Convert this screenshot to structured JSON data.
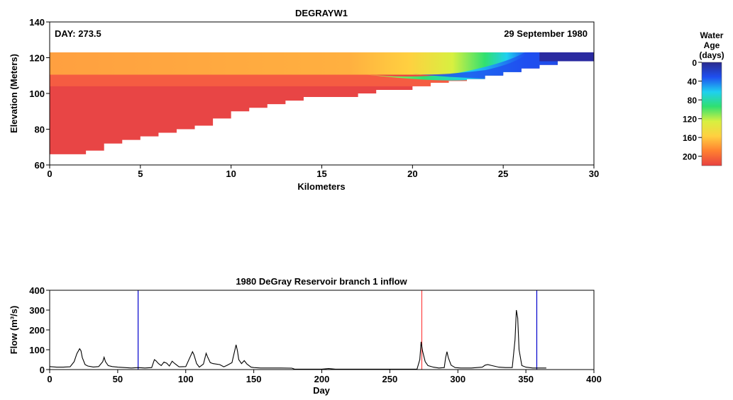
{
  "chart_data": [
    {
      "type": "heatmap",
      "title": "DEGRAYW1",
      "day_label": "DAY: 273.5",
      "date_label": "29 September 1980",
      "xlabel": "Kilometers",
      "ylabel": "Elevation (Meters)",
      "xlim": [
        0,
        30
      ],
      "ylim": [
        60,
        140
      ],
      "xticks": [
        0,
        5,
        10,
        15,
        20,
        25,
        30
      ],
      "yticks": [
        60,
        80,
        100,
        120,
        140
      ],
      "water_surface_elevation": 123,
      "bottom_profile": [
        {
          "x": 0,
          "y": 66
        },
        {
          "x": 2,
          "y": 68
        },
        {
          "x": 3,
          "y": 72
        },
        {
          "x": 4,
          "y": 74
        },
        {
          "x": 5,
          "y": 76
        },
        {
          "x": 6,
          "y": 78
        },
        {
          "x": 7,
          "y": 80
        },
        {
          "x": 8,
          "y": 82
        },
        {
          "x": 9,
          "y": 86
        },
        {
          "x": 10,
          "y": 90
        },
        {
          "x": 11,
          "y": 92
        },
        {
          "x": 12,
          "y": 94
        },
        {
          "x": 13,
          "y": 96
        },
        {
          "x": 14,
          "y": 98
        },
        {
          "x": 17,
          "y": 100
        },
        {
          "x": 18,
          "y": 102
        },
        {
          "x": 20,
          "y": 104
        },
        {
          "x": 21,
          "y": 106
        },
        {
          "x": 22,
          "y": 107
        },
        {
          "x": 23,
          "y": 108
        },
        {
          "x": 24,
          "y": 110
        },
        {
          "x": 25,
          "y": 112
        },
        {
          "x": 26,
          "y": 114
        },
        {
          "x": 27,
          "y": 116
        },
        {
          "x": 28,
          "y": 118
        },
        {
          "x": 30,
          "y": 118
        }
      ],
      "colorbar": {
        "title": [
          "Water",
          "Age",
          "(days)"
        ],
        "ticks": [
          0,
          40,
          80,
          120,
          160,
          200
        ],
        "range": [
          0,
          220
        ],
        "colors": [
          "#2a2a8c",
          "#1f4ff0",
          "#1fd0f0",
          "#30e070",
          "#d8f040",
          "#ffd040",
          "#ff8030",
          "#e84040"
        ]
      },
      "age_zones": {
        "deep": 215,
        "surface_upstream": 170,
        "interflow_front_km": 22.5,
        "inflow_tongue_km": 26,
        "inflow_plunge_elevation": 112
      }
    },
    {
      "type": "line",
      "title": "1980 DeGray Reservoir branch 1 inflow",
      "xlabel": "Day",
      "ylabel": "Flow (m³/s)",
      "xlim": [
        0,
        400
      ],
      "ylim": [
        0,
        400
      ],
      "xticks": [
        0,
        50,
        100,
        150,
        200,
        250,
        300,
        350,
        400
      ],
      "yticks": [
        0,
        100,
        200,
        300,
        400
      ],
      "markers": [
        {
          "x": 65,
          "color": "#0000cc"
        },
        {
          "x": 273.5,
          "color": "#ff4040"
        },
        {
          "x": 358,
          "color": "#0000cc"
        }
      ],
      "series": [
        {
          "color": "#000000",
          "x": [
            0,
            5,
            10,
            15,
            18,
            20,
            22,
            23,
            24,
            26,
            28,
            32,
            36,
            39,
            40,
            41,
            43,
            46,
            50,
            55,
            60,
            65,
            70,
            75,
            76,
            77,
            78,
            80,
            82,
            84,
            86,
            88,
            90,
            92,
            95,
            100,
            103,
            105,
            106,
            108,
            110,
            113,
            115,
            116,
            118,
            120,
            125,
            128,
            130,
            134,
            137,
            138,
            139,
            141,
            143,
            145,
            148,
            150,
            155,
            160,
            170,
            178,
            180,
            190,
            200,
            205,
            210,
            220,
            230,
            240,
            250,
            260,
            270,
            272,
            273,
            274,
            276,
            278,
            282,
            286,
            290,
            291,
            292,
            293,
            295,
            298,
            302,
            310,
            318,
            320,
            322,
            325,
            330,
            335,
            340,
            342,
            343,
            344,
            345,
            347,
            350,
            355,
            360,
            365
          ],
          "y": [
            15,
            12,
            12,
            14,
            40,
            80,
            105,
            95,
            60,
            25,
            18,
            13,
            15,
            40,
            62,
            40,
            20,
            15,
            12,
            10,
            8,
            10,
            8,
            10,
            30,
            50,
            45,
            30,
            20,
            38,
            32,
            18,
            42,
            30,
            14,
            15,
            60,
            90,
            75,
            30,
            12,
            28,
            82,
            65,
            35,
            30,
            25,
            14,
            20,
            35,
            125,
            95,
            50,
            30,
            45,
            28,
            12,
            10,
            8,
            8,
            8,
            7,
            2,
            2,
            2,
            5,
            2,
            2,
            2,
            2,
            2,
            2,
            2,
            50,
            140,
            95,
            40,
            20,
            12,
            8,
            10,
            60,
            90,
            60,
            22,
            10,
            8,
            8,
            12,
            22,
            25,
            20,
            12,
            10,
            10,
            150,
            300,
            260,
            100,
            20,
            12,
            8,
            8,
            8
          ]
        }
      ]
    }
  ]
}
